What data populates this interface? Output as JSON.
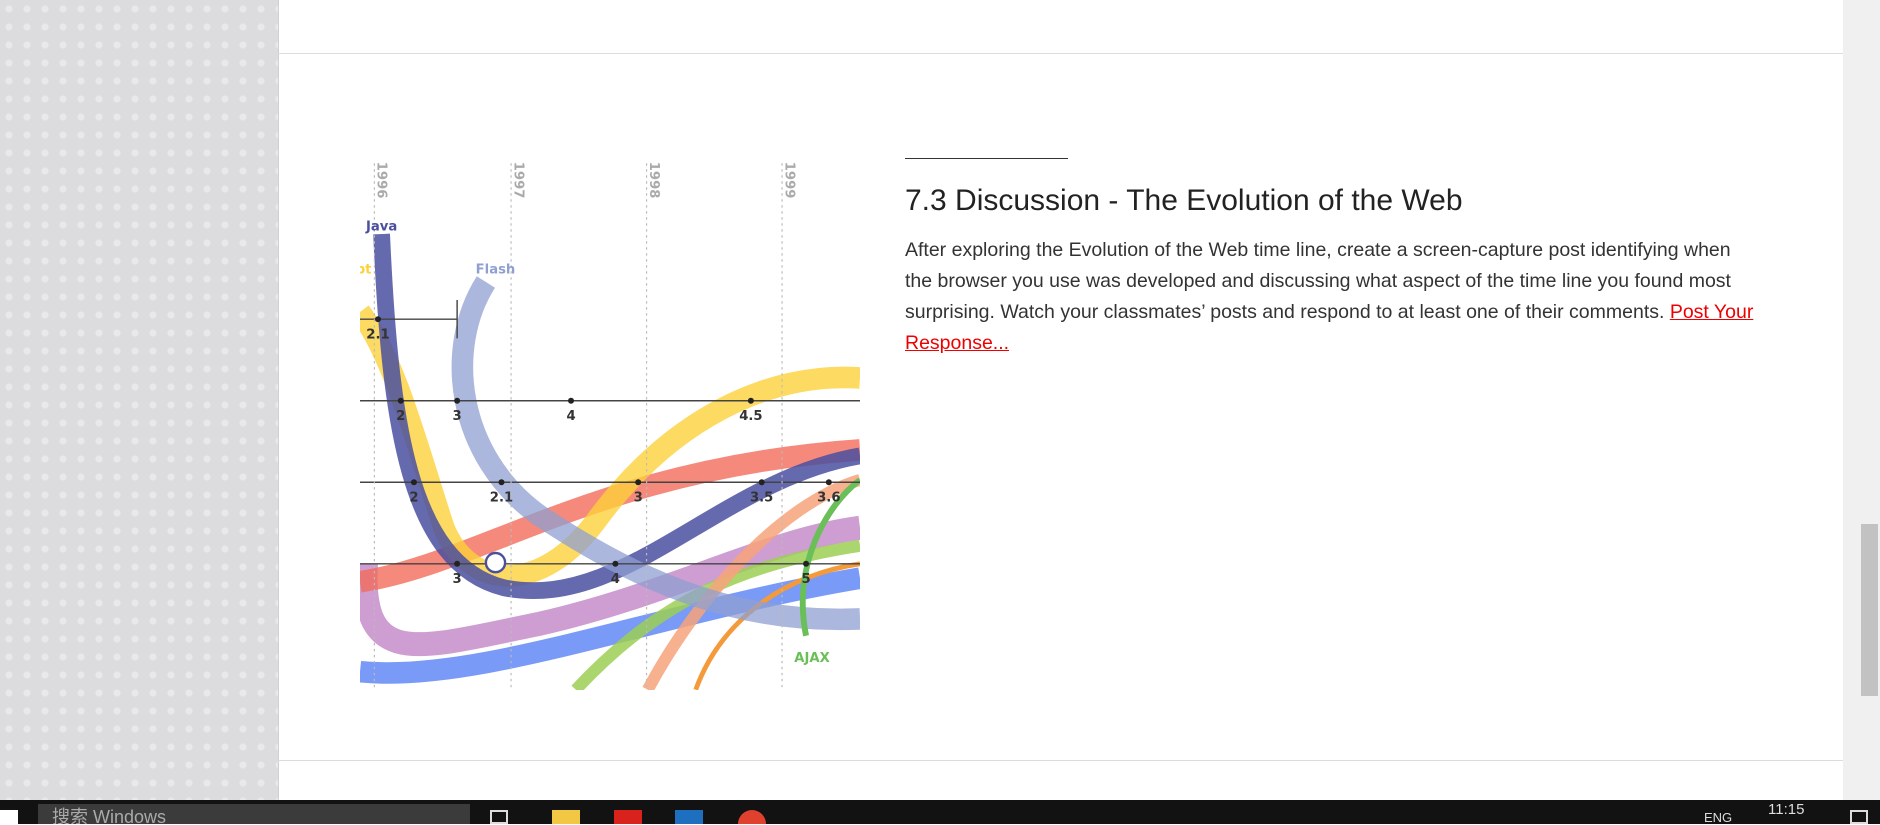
{
  "illustration": {
    "years": [
      "1996",
      "1997",
      "1998",
      "1999"
    ],
    "technologies": [
      "Java",
      "Flash",
      "pt",
      "AJAX"
    ],
    "versions": [
      "2.1",
      "2",
      "3",
      "4",
      "4.5",
      "2",
      "2.1",
      "3",
      "3.5",
      "3.6",
      "3",
      "4",
      "5"
    ]
  },
  "article": {
    "heading": "7.3 Discussion - The Evolution of the Web",
    "body": "After exploring the Evolution of the Web time line, create a screen-capture post identifying when the browser you use was developed and discussing what aspect of the time line you found most surprising. Watch your classmates’ posts and respond to at least one of their comments.",
    "link": "Post Your Response..."
  },
  "taskbar": {
    "search": "搜索 Windows",
    "language": "ENG",
    "time": "11:15"
  }
}
